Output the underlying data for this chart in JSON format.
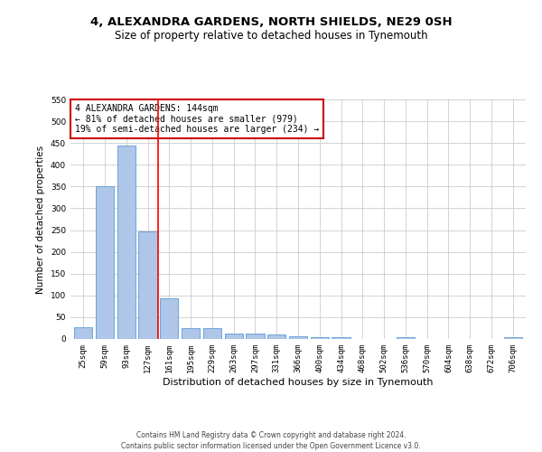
{
  "title": "4, ALEXANDRA GARDENS, NORTH SHIELDS, NE29 0SH",
  "subtitle": "Size of property relative to detached houses in Tynemouth",
  "xlabel": "Distribution of detached houses by size in Tynemouth",
  "ylabel": "Number of detached properties",
  "categories": [
    "25sqm",
    "59sqm",
    "93sqm",
    "127sqm",
    "161sqm",
    "195sqm",
    "229sqm",
    "263sqm",
    "297sqm",
    "331sqm",
    "366sqm",
    "400sqm",
    "434sqm",
    "468sqm",
    "502sqm",
    "536sqm",
    "570sqm",
    "604sqm",
    "638sqm",
    "672sqm",
    "706sqm"
  ],
  "values": [
    27,
    350,
    445,
    248,
    93,
    25,
    25,
    13,
    13,
    10,
    7,
    5,
    5,
    0,
    0,
    5,
    0,
    0,
    0,
    0,
    5
  ],
  "bar_color": "#aec6e8",
  "bar_edge_color": "#5b9bd5",
  "red_line_x": 3.5,
  "annotation_text": "4 ALEXANDRA GARDENS: 144sqm\n← 81% of detached houses are smaller (979)\n19% of semi-detached houses are larger (234) →",
  "annotation_box_color": "#ffffff",
  "annotation_box_edge_color": "#cc0000",
  "footer_line1": "Contains HM Land Registry data © Crown copyright and database right 2024.",
  "footer_line2": "Contains public sector information licensed under the Open Government Licence v3.0.",
  "ylim": [
    0,
    550
  ],
  "yticks": [
    0,
    50,
    100,
    150,
    200,
    250,
    300,
    350,
    400,
    450,
    500,
    550
  ],
  "background_color": "#ffffff",
  "grid_color": "#cccccc",
  "title_fontsize": 9.5,
  "subtitle_fontsize": 8.5,
  "tick_fontsize": 6.5,
  "ylabel_fontsize": 7.5,
  "xlabel_fontsize": 8,
  "annotation_fontsize": 7,
  "footer_fontsize": 5.5
}
